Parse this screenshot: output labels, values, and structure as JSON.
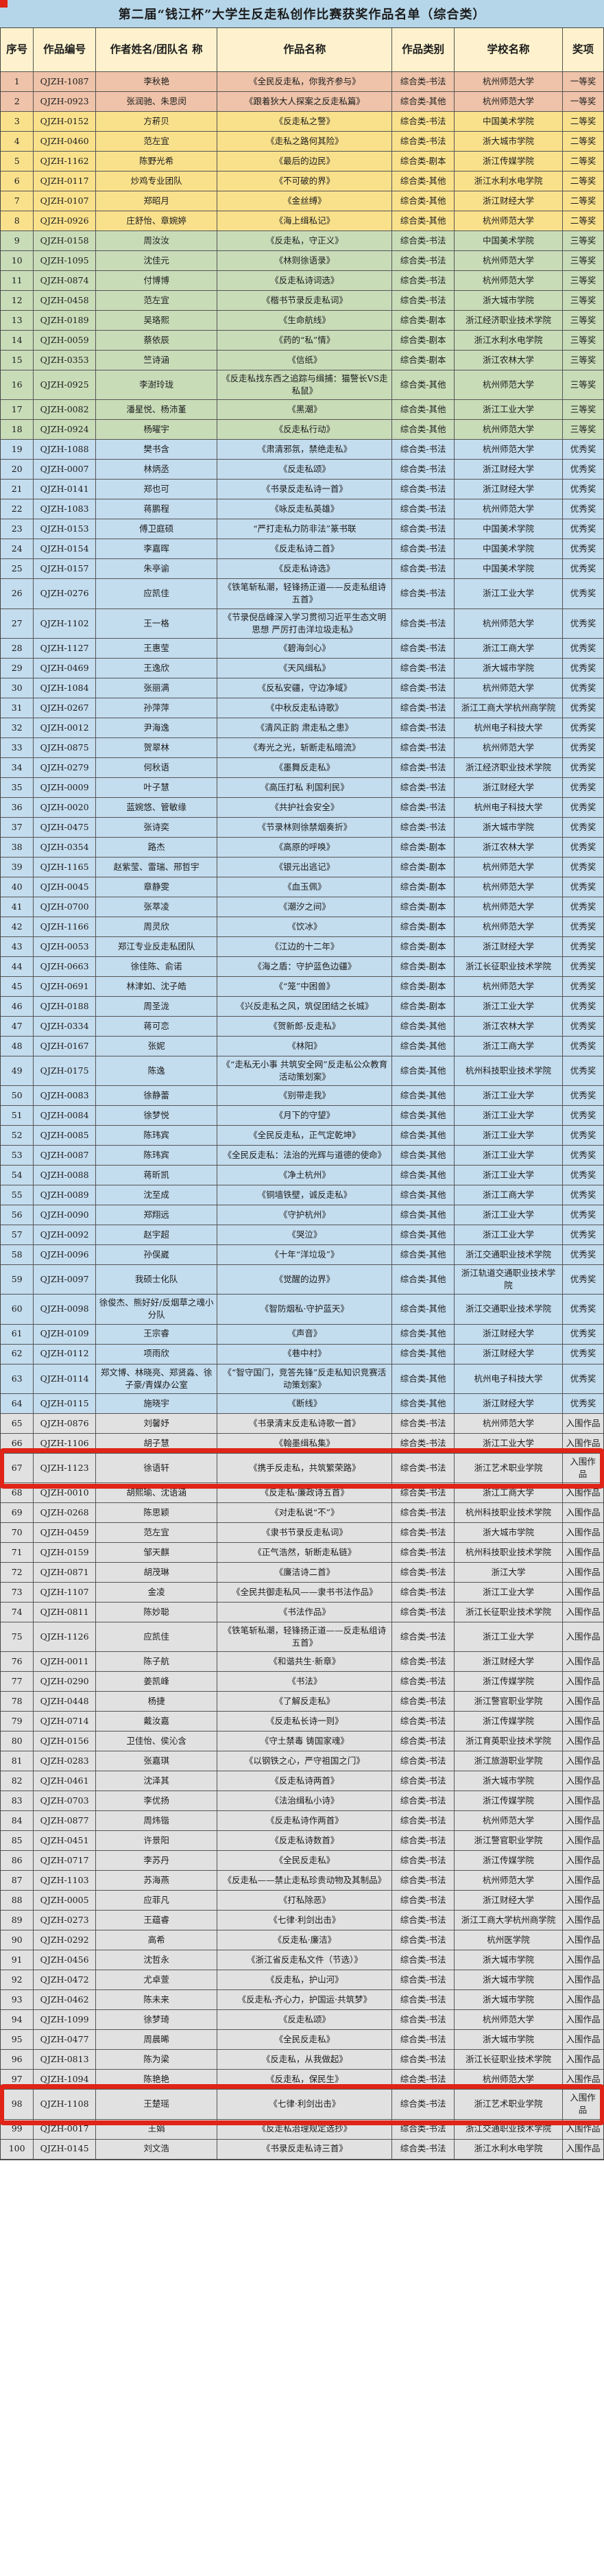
{
  "title": "第二届“钱江杯”大学生反走私创作比赛获奖作品名单（综合类）",
  "columns": [
    "序号",
    "作品编号",
    "作者姓名/团队名\n称",
    "作品名称",
    "作品类别",
    "学校名称",
    "奖项"
  ],
  "colors": {
    "title_bg": "#b5d6e9",
    "header_bg": "#fdf2cd",
    "highlight_red": "#e02417",
    "award_first": "#eec3a9",
    "award_second": "#f9e18c",
    "award_third": "#c8dcb8",
    "award_excellent": "#c3dcee",
    "award_finalist": "#e1e1e1"
  },
  "award_color_map": {
    "一等奖": "award_first",
    "二等奖": "award_second",
    "三等奖": "award_third",
    "优秀奖": "award_excellent",
    "入围作品": "award_finalist"
  },
  "highlighted_rows": [
    67,
    98
  ],
  "rows": [
    [
      1,
      "QJZH-1087",
      "李秋艳",
      "《全民反走私，你我齐参与》",
      "综合类-书法",
      "杭州师范大学",
      "一等奖"
    ],
    [
      2,
      "QJZH-0923",
      "张润驰、朱思闵",
      "《跟着狄大人探案之反走私篇》",
      "综合类-其他",
      "杭州师范大学",
      "一等奖"
    ],
    [
      3,
      "QJZH-0152",
      "方菥贝",
      "《反走私之警》",
      "综合类-书法",
      "中国美术学院",
      "二等奖"
    ],
    [
      4,
      "QJZH-0460",
      "范左宜",
      "《走私之路何其险》",
      "综合类-书法",
      "浙大城市学院",
      "二等奖"
    ],
    [
      5,
      "QJZH-1162",
      "陈野光希",
      "《最后的边民》",
      "综合类-剧本",
      "浙江传媒学院",
      "二等奖"
    ],
    [
      6,
      "QJZH-0117",
      "炒鸡专业团队",
      "《不可破的界》",
      "综合类-其他",
      "浙江水利水电学院",
      "二等奖"
    ],
    [
      7,
      "QJZH-0107",
      "郑昭月",
      "《金丝缚》",
      "综合类-其他",
      "浙江财经大学",
      "二等奖"
    ],
    [
      8,
      "QJZH-0926",
      "庄舒怡、章婉婷",
      "《海上缉私记》",
      "综合类-其他",
      "杭州师范大学",
      "二等奖"
    ],
    [
      9,
      "QJZH-0158",
      "周汝汝",
      "《反走私，守正义》",
      "综合类-书法",
      "中国美术学院",
      "三等奖"
    ],
    [
      10,
      "QJZH-1095",
      "沈佳元",
      "《林则徐语录》",
      "综合类-书法",
      "杭州师范大学",
      "三等奖"
    ],
    [
      11,
      "QJZH-0874",
      "付博博",
      "《反走私诗词选》",
      "综合类-书法",
      "杭州师范大学",
      "三等奖"
    ],
    [
      12,
      "QJZH-0458",
      "范左宜",
      "《楷书节录反走私词》",
      "综合类-书法",
      "浙大城市学院",
      "三等奖"
    ],
    [
      13,
      "QJZH-0189",
      "吴珞熙",
      "《生命航线》",
      "综合类-剧本",
      "浙江经济职业技术学院",
      "三等奖"
    ],
    [
      14,
      "QJZH-0059",
      "蔡依辰",
      "《药的“私”情》",
      "综合类-剧本",
      "浙江水利水电学院",
      "三等奖"
    ],
    [
      15,
      "QJZH-0353",
      "竺诗涵",
      "《信纸》",
      "综合类-剧本",
      "浙江农林大学",
      "三等奖"
    ],
    [
      16,
      "QJZH-0925",
      "李澍玲珑",
      "《反走私找东西之追踪与缉捕：猫警长VS走私鼠》",
      "综合类-其他",
      "杭州师范大学",
      "三等奖"
    ],
    [
      17,
      "QJZH-0082",
      "潘星悦、杨沛堇",
      "《黑潮》",
      "综合类-其他",
      "浙江工业大学",
      "三等奖"
    ],
    [
      18,
      "QJZH-0924",
      "杨曜宇",
      "《反走私行动》",
      "综合类-其他",
      "杭州师范大学",
      "三等奖"
    ],
    [
      19,
      "QJZH-1088",
      "樊书含",
      "《肃清邪氛，禁绝走私》",
      "综合类-书法",
      "杭州师范大学",
      "优秀奖"
    ],
    [
      20,
      "QJZH-0007",
      "林炳丞",
      "《反走私颂》",
      "综合类-书法",
      "浙江财经大学",
      "优秀奖"
    ],
    [
      21,
      "QJZH-0141",
      "郑也可",
      "《书录反走私诗一首》",
      "综合类-书法",
      "浙江财经大学",
      "优秀奖"
    ],
    [
      22,
      "QJZH-1083",
      "蒋鹏程",
      "《咏反走私英雄》",
      "综合类-书法",
      "杭州师范大学",
      "优秀奖"
    ],
    [
      23,
      "QJZH-0153",
      "傅卫庭硕",
      "“严打走私力防非法”篆书联",
      "综合类-书法",
      "中国美术学院",
      "优秀奖"
    ],
    [
      24,
      "QJZH-0154",
      "李嘉晖",
      "《反走私诗二首》",
      "综合类-书法",
      "中国美术学院",
      "优秀奖"
    ],
    [
      25,
      "QJZH-0157",
      "朱亭谕",
      "《反走私诗选》",
      "综合类-书法",
      "中国美术学院",
      "优秀奖"
    ],
    [
      26,
      "QJZH-0276",
      "应凯佳",
      "《铁笔斩私潮，轻锋扬正道——反走私组诗五首》",
      "综合类-书法",
      "浙江工业大学",
      "优秀奖"
    ],
    [
      27,
      "QJZH-1102",
      "王一格",
      "《节录倪岳峰深入学习贯彻习近平生态文明思想 严厉打击洋垃圾走私》",
      "综合类-书法",
      "杭州师范大学",
      "优秀奖"
    ],
    [
      28,
      "QJZH-1127",
      "王惠莹",
      "《碧海剑心》",
      "综合类-书法",
      "浙江工商大学",
      "优秀奖"
    ],
    [
      29,
      "QJZH-0469",
      "王逸欣",
      "《天风缉私》",
      "综合类-书法",
      "浙大城市学院",
      "优秀奖"
    ],
    [
      30,
      "QJZH-1084",
      "张丽满",
      "《反私安疆，守边净域》",
      "综合类-书法",
      "杭州师范大学",
      "优秀奖"
    ],
    [
      31,
      "QJZH-0267",
      "孙萍萍",
      "《中秋反走私诗歌》",
      "综合类-书法",
      "浙江工商大学杭州商学院",
      "优秀奖"
    ],
    [
      32,
      "QJZH-0012",
      "尹海逸",
      "《清风正韵 肃走私之患》",
      "综合类-书法",
      "杭州电子科技大学",
      "优秀奖"
    ],
    [
      33,
      "QJZH-0875",
      "贺翠林",
      "《寿光之光，斩断走私暗流》",
      "综合类-书法",
      "杭州师范大学",
      "优秀奖"
    ],
    [
      34,
      "QJZH-0279",
      "何秋语",
      "《墨舞反走私》",
      "综合类-书法",
      "浙江经济职业技术学院",
      "优秀奖"
    ],
    [
      35,
      "QJZH-0009",
      "叶子慧",
      "《高压打私 利国利民》",
      "综合类-书法",
      "浙江财经大学",
      "优秀奖"
    ],
    [
      36,
      "QJZH-0020",
      "蓝婉悠、管敏缘",
      "《共护社会安全》",
      "综合类-书法",
      "杭州电子科技大学",
      "优秀奖"
    ],
    [
      37,
      "QJZH-0475",
      "张诗奕",
      "《节录林则徐禁烟奏折》",
      "综合类-书法",
      "浙大城市学院",
      "优秀奖"
    ],
    [
      38,
      "QJZH-0354",
      "路杰",
      "《高原的呼唤》",
      "综合类-剧本",
      "浙江农林大学",
      "优秀奖"
    ],
    [
      39,
      "QJZH-1165",
      "赵紫莹、雷瑞、邢哲宇",
      "《银元出逃记》",
      "综合类-剧本",
      "杭州师范大学",
      "优秀奖"
    ],
    [
      40,
      "QJZH-0045",
      "章静雯",
      "《血玉佩》",
      "综合类-剧本",
      "杭州师范大学",
      "优秀奖"
    ],
    [
      41,
      "QJZH-0700",
      "张萃凌",
      "《潮汐之间》",
      "综合类-剧本",
      "杭州师范大学",
      "优秀奖"
    ],
    [
      42,
      "QJZH-1166",
      "周灵欣",
      "《饮冰》",
      "综合类-剧本",
      "杭州师范大学",
      "优秀奖"
    ],
    [
      43,
      "QJZH-0053",
      "郑江专业反走私团队",
      "《江边的十二年》",
      "综合类-剧本",
      "浙江财经大学",
      "优秀奖"
    ],
    [
      44,
      "QJZH-0663",
      "徐佳陈、俞诺",
      "《海之盾：守护蓝色边疆》",
      "综合类-剧本",
      "浙江长征职业技术学院",
      "优秀奖"
    ],
    [
      45,
      "QJZH-0691",
      "林津如、沈子皓",
      "《“笼”中困兽》",
      "综合类-剧本",
      "杭州师范大学",
      "优秀奖"
    ],
    [
      46,
      "QJZH-0188",
      "周圣泷",
      "《兴反走私之风，筑促团结之长城》",
      "综合类-剧本",
      "浙江工业大学",
      "优秀奖"
    ],
    [
      47,
      "QJZH-0334",
      "蒋可恋",
      "《贺新郎·反走私》",
      "综合类-其他",
      "浙江农林大学",
      "优秀奖"
    ],
    [
      48,
      "QJZH-0167",
      "张妮",
      "《林阳》",
      "综合类-其他",
      "浙江工商大学",
      "优秀奖"
    ],
    [
      49,
      "QJZH-0175",
      "陈逸",
      "《“走私无小事 共筑安全网”反走私公众教育活动策划案》",
      "综合类-其他",
      "杭州科技职业技术学院",
      "优秀奖"
    ],
    [
      50,
      "QJZH-0083",
      "徐静蕾",
      "《别带走我》",
      "综合类-其他",
      "浙江工业大学",
      "优秀奖"
    ],
    [
      51,
      "QJZH-0084",
      "徐梦悦",
      "《月下的守望》",
      "综合类-其他",
      "浙江工业大学",
      "优秀奖"
    ],
    [
      52,
      "QJZH-0085",
      "陈玮宾",
      "《全民反走私，正气定乾坤》",
      "综合类-其他",
      "浙江工业大学",
      "优秀奖"
    ],
    [
      53,
      "QJZH-0087",
      "陈玮宾",
      "《全民反走私：法治的光辉与道德的使命》",
      "综合类-其他",
      "浙江工业大学",
      "优秀奖"
    ],
    [
      54,
      "QJZH-0088",
      "蒋昕凯",
      "《净土杭州》",
      "综合类-其他",
      "浙江工业大学",
      "优秀奖"
    ],
    [
      55,
      "QJZH-0089",
      "沈至成",
      "《铜墙铁壁，诚反走私》",
      "综合类-其他",
      "浙江工商大学",
      "优秀奖"
    ],
    [
      56,
      "QJZH-0090",
      "郑翔远",
      "《守护杭州》",
      "综合类-其他",
      "浙江工业大学",
      "优秀奖"
    ],
    [
      57,
      "QJZH-0092",
      "赵宇超",
      "《哭泣》",
      "综合类-其他",
      "浙江工业大学",
      "优秀奖"
    ],
    [
      58,
      "QJZH-0096",
      "孙俣崴",
      "《十年“洋垃圾”》",
      "综合类-其他",
      "浙江交通职业技术学院",
      "优秀奖"
    ],
    [
      59,
      "QJZH-0097",
      "我硕士化队",
      "《觉醒的边界》",
      "综合类-其他",
      "浙江轨道交通职业技术学院",
      "优秀奖"
    ],
    [
      60,
      "QJZH-0098",
      "徐俊杰、熊好好/反烟草之魂小分队",
      "《智防烟私·守护蓝天》",
      "综合类-其他",
      "浙江交通职业技术学院",
      "优秀奖"
    ],
    [
      61,
      "QJZH-0109",
      "王宗睿",
      "《声音》",
      "综合类-其他",
      "浙江财经大学",
      "优秀奖"
    ],
    [
      62,
      "QJZH-0112",
      "项雨欣",
      "《巷中村》",
      "综合类-其他",
      "浙江财经大学",
      "优秀奖"
    ],
    [
      63,
      "QJZH-0114",
      "郑文博、林晓亮、郑贤淼、徐子豪/青媒办公室",
      "《“智守国门，竞答先锋”反走私知识竞赛活动策划案》",
      "综合类-其他",
      "杭州电子科技大学",
      "优秀奖"
    ],
    [
      64,
      "QJZH-0115",
      "施晓宇",
      "《断线》",
      "综合类-其他",
      "浙江财经大学",
      "优秀奖"
    ],
    [
      65,
      "QJZH-0876",
      "刘馨妤",
      "《书录清末反走私诗歌一首》",
      "综合类-书法",
      "杭州师范大学",
      "入围作品"
    ],
    [
      66,
      "QJZH-1106",
      "胡子慧",
      "《翰墨缉私集》",
      "综合类-书法",
      "浙江工业大学",
      "入围作品"
    ],
    [
      67,
      "QJZH-1123",
      "徐语轩",
      "《携手反走私，共筑繁荣路》",
      "综合类-书法",
      "浙江艺术职业学院",
      "入围作品"
    ],
    [
      68,
      "QJZH-0010",
      "胡熙瑜、沈语涵",
      "《反走私·廉政诗五首》",
      "综合类-书法",
      "浙江工商大学",
      "入围作品"
    ],
    [
      69,
      "QJZH-0268",
      "陈思颖",
      "《对走私说“不”》",
      "综合类-书法",
      "杭州科技职业技术学院",
      "入围作品"
    ],
    [
      70,
      "QJZH-0459",
      "范左宜",
      "《隶书节录反走私词》",
      "综合类-书法",
      "浙大城市学院",
      "入围作品"
    ],
    [
      71,
      "QJZH-0159",
      "邹天麒",
      "《正气浩然，斩断走私链》",
      "综合类-书法",
      "杭州科技职业技术学院",
      "入围作品"
    ],
    [
      72,
      "QJZH-0871",
      "胡茂琳",
      "《廉洁诗二首》",
      "综合类-书法",
      "浙江大学",
      "入围作品"
    ],
    [
      73,
      "QJZH-1107",
      "金凌",
      "《全民共御走私风——隶书书法作品》",
      "综合类-书法",
      "浙江工业大学",
      "入围作品"
    ],
    [
      74,
      "QJZH-0811",
      "陈妙聪",
      "《书法作品》",
      "综合类-书法",
      "浙江长征职业技术学院",
      "入围作品"
    ],
    [
      75,
      "QJZH-1126",
      "应凯佳",
      "《铁笔斩私潮，轻锋扬正道——反走私组诗五首》",
      "综合类-书法",
      "浙江工业大学",
      "入围作品"
    ],
    [
      76,
      "QJZH-0011",
      "陈子航",
      "《和谐共生·新章》",
      "综合类-书法",
      "浙江财经大学",
      "入围作品"
    ],
    [
      77,
      "QJZH-0290",
      "姜凯峰",
      "《书法》",
      "综合类-书法",
      "浙江传媒学院",
      "入围作品"
    ],
    [
      78,
      "QJZH-0448",
      "杨捷",
      "《了解反走私》",
      "综合类-书法",
      "浙江警官职业学院",
      "入围作品"
    ],
    [
      79,
      "QJZH-0714",
      "戴汝嘉",
      "《反走私长诗一则》",
      "综合类-书法",
      "浙江传媒学院",
      "入围作品"
    ],
    [
      80,
      "QJZH-0156",
      "卫佳怡、侯沁含",
      "《守土禁毒 铸国家魂》",
      "综合类-书法",
      "浙江育英职业技术学院",
      "入围作品"
    ],
    [
      81,
      "QJZH-0283",
      "张嘉琪",
      "《以钢铁之心，严守祖国之门》",
      "综合类-书法",
      "浙江旅游职业学院",
      "入围作品"
    ],
    [
      82,
      "QJZH-0461",
      "沈泽其",
      "《反走私诗两首》",
      "综合类-书法",
      "浙大城市学院",
      "入围作品"
    ],
    [
      83,
      "QJZH-0703",
      "李优扬",
      "《法治缉私小诗》",
      "综合类-书法",
      "浙江传媒学院",
      "入围作品"
    ],
    [
      84,
      "QJZH-0877",
      "周炜锴",
      "《反走私诗作两首》",
      "综合类-书法",
      "杭州师范大学",
      "入围作品"
    ],
    [
      85,
      "QJZH-0451",
      "许景阳",
      "《反走私诗数首》",
      "综合类-书法",
      "浙江警官职业学院",
      "入围作品"
    ],
    [
      86,
      "QJZH-0717",
      "李苏丹",
      "《全民反走私》",
      "综合类-书法",
      "浙江传媒学院",
      "入围作品"
    ],
    [
      87,
      "QJZH-1103",
      "苏海燕",
      "《反走私——禁止走私珍贵动物及其制品》",
      "综合类-书法",
      "杭州师范大学",
      "入围作品"
    ],
    [
      88,
      "QJZH-0005",
      "应菲凡",
      "《打私除恶》",
      "综合类-书法",
      "浙江财经大学",
      "入围作品"
    ],
    [
      89,
      "QJZH-0273",
      "王蕴睿",
      "《七律·利剑出击》",
      "综合类-书法",
      "浙江工商大学杭州商学院",
      "入围作品"
    ],
    [
      90,
      "QJZH-0292",
      "高希",
      "《反走私·廉洁》",
      "综合类-书法",
      "杭州医学院",
      "入围作品"
    ],
    [
      91,
      "QJZH-0456",
      "沈哲永",
      "《浙江省反走私文件（节选）》",
      "综合类-书法",
      "浙大城市学院",
      "入围作品"
    ],
    [
      92,
      "QJZH-0472",
      "尤卓萱",
      "《反走私，护山河》",
      "综合类-书法",
      "浙大城市学院",
      "入围作品"
    ],
    [
      93,
      "QJZH-0462",
      "陈未来",
      "《反走私·齐心力，护国运·共筑梦》",
      "综合类-书法",
      "浙大城市学院",
      "入围作品"
    ],
    [
      94,
      "QJZH-1099",
      "徐梦琦",
      "《反走私颂》",
      "综合类-书法",
      "杭州师范大学",
      "入围作品"
    ],
    [
      95,
      "QJZH-0477",
      "周晨晞",
      "《全民反走私》",
      "综合类-书法",
      "浙大城市学院",
      "入围作品"
    ],
    [
      96,
      "QJZH-0813",
      "陈为梁",
      "《反走私，从我做起》",
      "综合类-书法",
      "浙江长征职业技术学院",
      "入围作品"
    ],
    [
      97,
      "QJZH-1094",
      "陈艳艳",
      "《反走私，保民生》",
      "综合类-书法",
      "杭州师范大学",
      "入围作品"
    ],
    [
      98,
      "QJZH-1108",
      "王楚瑶",
      "《七律·利剑出击》",
      "综合类-书法",
      "浙江艺术职业学院",
      "入围作品"
    ],
    [
      99,
      "QJZH-0017",
      "王娟",
      "《反走私治理规定选抄》",
      "综合类-书法",
      "浙江交通职业技术学院",
      "入围作品"
    ],
    [
      100,
      "QJZH-0145",
      "刘文浩",
      "《书录反走私诗三首》",
      "综合类-书法",
      "浙江水利水电学院",
      "入围作品"
    ]
  ]
}
